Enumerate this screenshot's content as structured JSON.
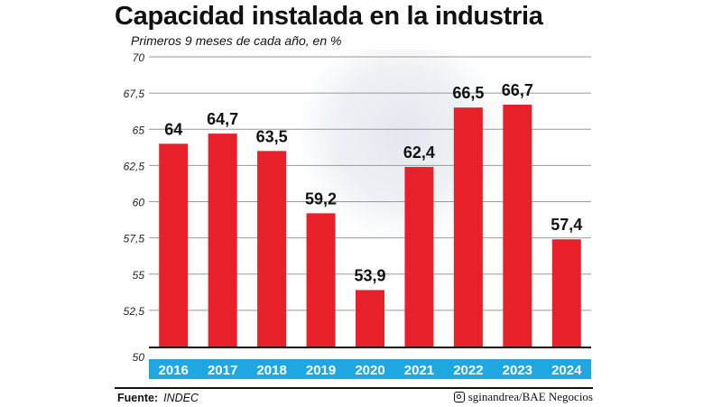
{
  "chart_data": {
    "type": "bar",
    "title": "Capacidad instalada en la industria",
    "subtitle": "Primeros 9 meses de cada año, en %",
    "categories": [
      "2016",
      "2017",
      "2018",
      "2019",
      "2020",
      "2021",
      "2022",
      "2023",
      "2024"
    ],
    "values": [
      64,
      64.7,
      63.5,
      59.2,
      53.9,
      62.4,
      66.5,
      66.7,
      57.4
    ],
    "value_labels": [
      "64",
      "64,7",
      "63,5",
      "59,2",
      "53,9",
      "62,4",
      "66,5",
      "66,7",
      "57,4"
    ],
    "ylim": [
      50,
      70
    ],
    "yticks": [
      50,
      52.5,
      55,
      57.5,
      60,
      62.5,
      65,
      67.5,
      70
    ],
    "ytick_labels": [
      "50",
      "52,5",
      "55",
      "57,5",
      "60",
      "62,5",
      "65",
      "67,5",
      "70"
    ],
    "grid": true,
    "colors": {
      "bar": "#e8202a",
      "axis_band": "#1ea7e1",
      "grid": "#999999"
    }
  },
  "footer": {
    "source_label": "Fuente:",
    "source": "INDEC",
    "credit": "sginandrea/BAE Negocios",
    "credit_icon": "instagram-icon"
  }
}
